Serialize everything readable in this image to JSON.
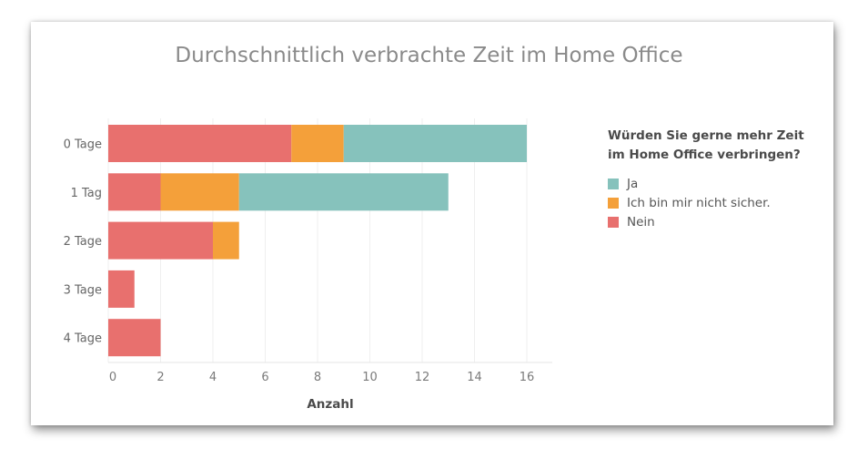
{
  "chart_data": {
    "type": "bar",
    "orientation": "horizontal",
    "stacked": true,
    "title": "Durchschnittlich verbrachte Zeit im Home Office",
    "xlabel": "Anzahl",
    "ylabel": "",
    "categories": [
      "0 Tage",
      "1 Tag",
      "2 Tage",
      "3 Tage",
      "4 Tage"
    ],
    "series": [
      {
        "name": "Nein",
        "color": "#E8706E",
        "values": [
          7,
          2,
          4,
          1,
          2
        ]
      },
      {
        "name": "Ich bin mir nicht sicher.",
        "color": "#F4A03A",
        "values": [
          2,
          3,
          1,
          0,
          0
        ]
      },
      {
        "name": "Ja",
        "color": "#86C2BC",
        "values": [
          7,
          8,
          0,
          0,
          0
        ]
      }
    ],
    "xlim": [
      0,
      17
    ],
    "xticks": [
      "0",
      "2",
      "4",
      "6",
      "8",
      "10",
      "12",
      "14",
      "16"
    ],
    "grid": "vertical",
    "legend": {
      "title": "Würden Sie gerne mehr Zeit im Home Office verbringen?",
      "title_lines": [
        "Würden Sie gerne mehr Zeit",
        "im Home Office verbringen?"
      ],
      "position": "right",
      "entries": [
        "Ja",
        "Ich bin mir nicht sicher.",
        "Nein"
      ]
    }
  }
}
